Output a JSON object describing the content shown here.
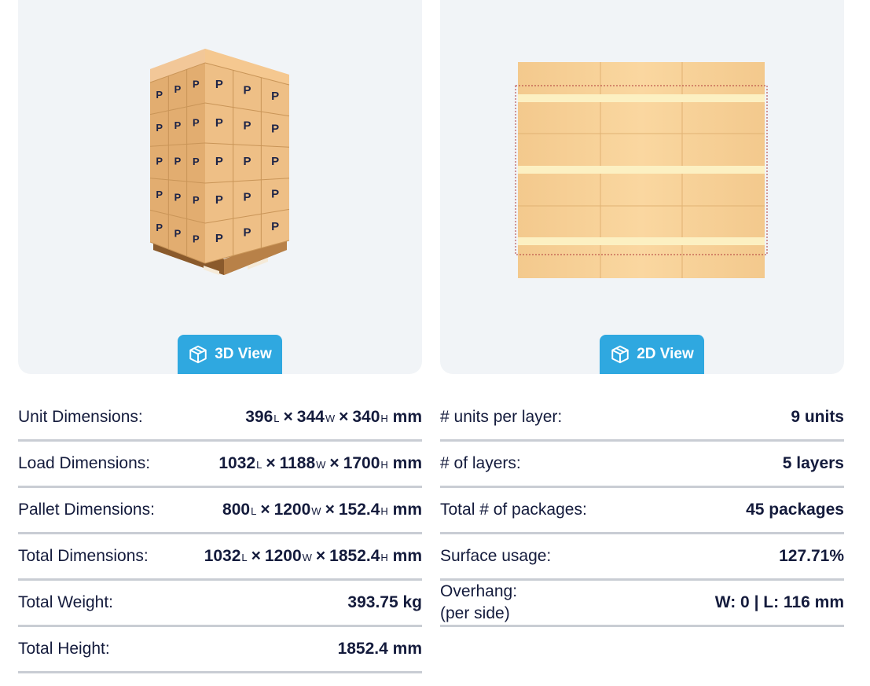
{
  "views": {
    "view3d_label": "3D View",
    "view2d_label": "2D View",
    "box_letter": "P"
  },
  "colors": {
    "panel_bg": "#f1f4f7",
    "accent": "#2fa8e0",
    "box": "#e9b97f",
    "text": "#141b3c",
    "divider": "#c9cdd4"
  },
  "left_table": [
    {
      "label": "Unit Dimensions:",
      "dims": [
        {
          "v": "396",
          "u": "L"
        },
        {
          "v": "344",
          "u": "W"
        },
        {
          "v": "340",
          "u": "H"
        }
      ],
      "unit": "mm"
    },
    {
      "label": "Load Dimensions:",
      "dims": [
        {
          "v": "1032",
          "u": "L"
        },
        {
          "v": "1188",
          "u": "W"
        },
        {
          "v": "1700",
          "u": "H"
        }
      ],
      "unit": "mm"
    },
    {
      "label": "Pallet Dimensions:",
      "dims": [
        {
          "v": "800",
          "u": "L"
        },
        {
          "v": "1200",
          "u": "W"
        },
        {
          "v": "152.4",
          "u": "H"
        }
      ],
      "unit": "mm"
    },
    {
      "label": "Total Dimensions:",
      "dims": [
        {
          "v": "1032",
          "u": "L"
        },
        {
          "v": "1200",
          "u": "W"
        },
        {
          "v": "1852.4",
          "u": "H"
        }
      ],
      "unit": "mm"
    },
    {
      "label": "Total Weight:",
      "value": "393.75 kg"
    },
    {
      "label": "Total Height:",
      "value": "1852.4 mm"
    }
  ],
  "right_table": [
    {
      "label": "# units per layer:",
      "value": "9 units"
    },
    {
      "label": "# of layers:",
      "value": "5 layers"
    },
    {
      "label": "Total # of packages:",
      "value": "45 packages"
    },
    {
      "label": "Surface usage:",
      "value": "127.71%"
    },
    {
      "label": "Overhang:",
      "label2": "(per side)",
      "value": "W: 0 | L: 116 mm"
    }
  ]
}
